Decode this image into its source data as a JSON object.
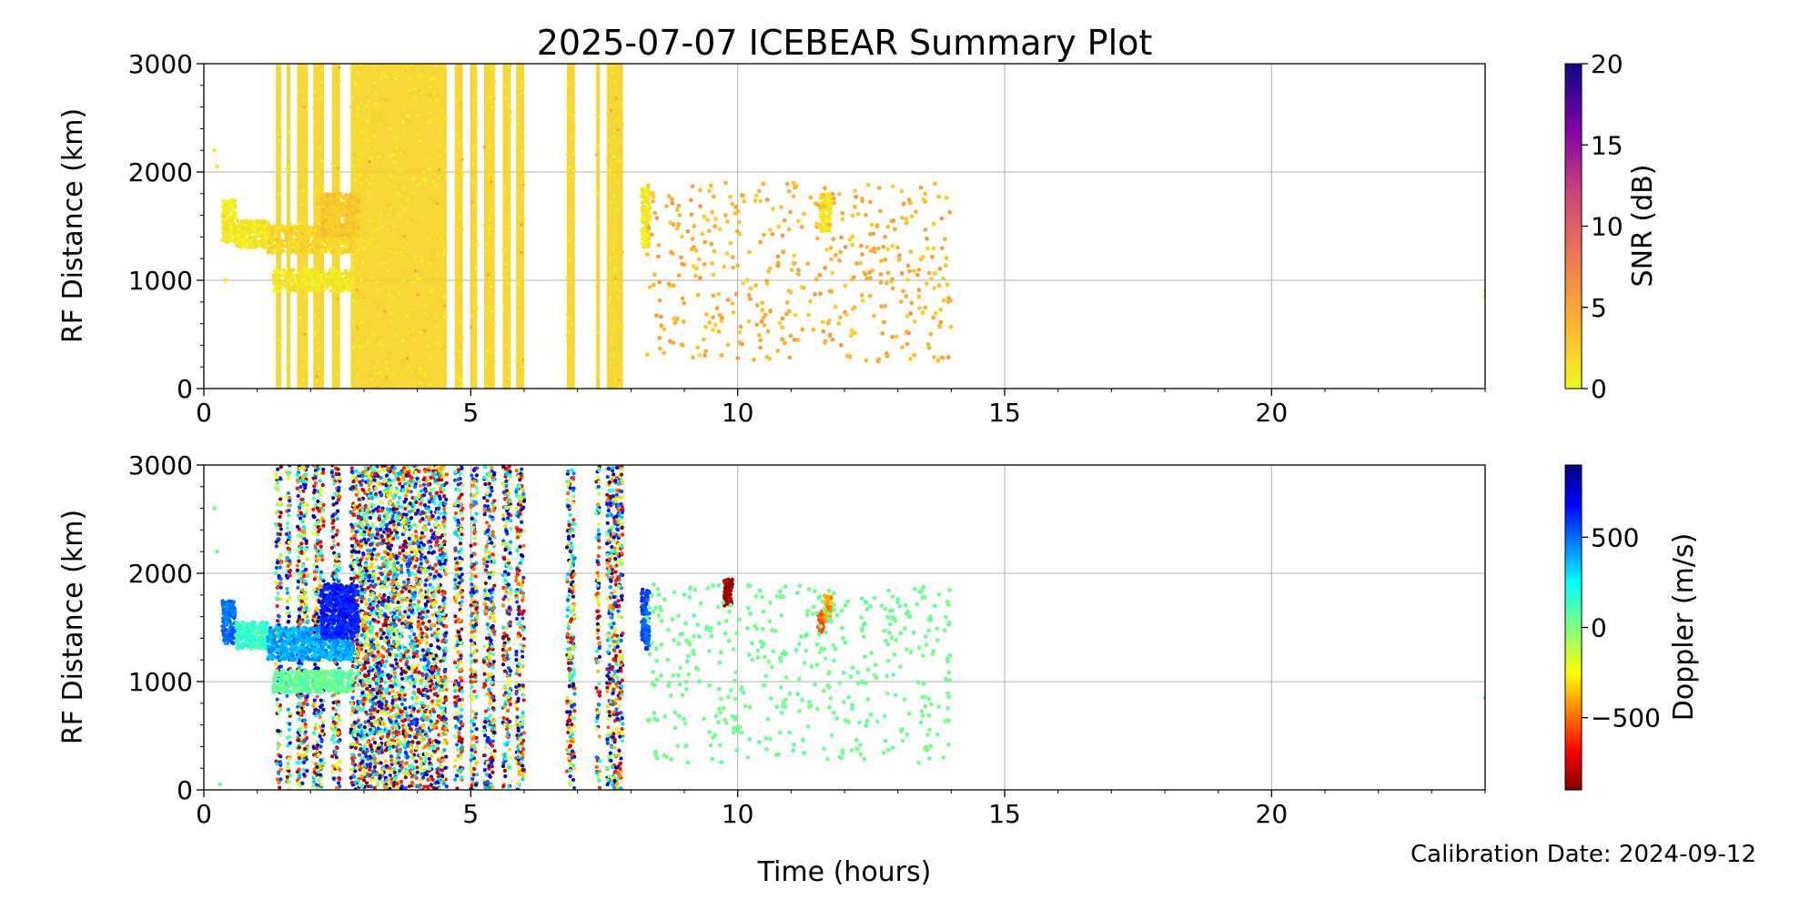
{
  "title": "2025-07-07 ICEBEAR Summary Plot",
  "footer": "Calibration Date: 2024-09-12",
  "chart_data": [
    {
      "type": "scatter",
      "name": "snr-panel",
      "xlabel": "",
      "ylabel": "RF Distance (km)",
      "xlim": [
        0,
        24
      ],
      "ylim": [
        0,
        3000
      ],
      "xticks": [
        0,
        5,
        10,
        15,
        20
      ],
      "yticks": [
        0,
        1000,
        2000,
        3000
      ],
      "grid": true,
      "colorbar": {
        "label": "SNR (dB)",
        "range": [
          0,
          20
        ],
        "ticks": [
          0,
          5,
          10,
          15,
          20
        ],
        "colormap": "plasma_r"
      },
      "dense_bands": [
        [
          1.35,
          1.45
        ],
        [
          1.55,
          1.62
        ],
        [
          1.75,
          1.95
        ],
        [
          2.05,
          2.25
        ],
        [
          2.4,
          2.55
        ],
        [
          2.75,
          4.55
        ],
        [
          4.7,
          4.85
        ],
        [
          5.0,
          5.12
        ],
        [
          5.25,
          5.45
        ],
        [
          5.6,
          5.75
        ],
        [
          5.85,
          6.0
        ],
        [
          6.8,
          6.95
        ],
        [
          7.35,
          7.42
        ],
        [
          7.55,
          7.85
        ]
      ],
      "clusters": [
        {
          "x": [
            0.35,
            0.6
          ],
          "y": [
            1350,
            1750
          ],
          "snr": 1
        },
        {
          "x": [
            0.6,
            1.2
          ],
          "y": [
            1300,
            1550
          ],
          "snr": 1
        },
        {
          "x": [
            1.2,
            2.8
          ],
          "y": [
            1250,
            1500
          ],
          "snr": 2
        },
        {
          "x": [
            2.2,
            2.9
          ],
          "y": [
            1400,
            1800
          ],
          "snr": 3
        },
        {
          "x": [
            1.3,
            2.8
          ],
          "y": [
            900,
            1100
          ],
          "snr": 1
        },
        {
          "x": [
            8.2,
            8.35
          ],
          "y": [
            1300,
            1850
          ],
          "snr": 1
        },
        {
          "x": [
            11.55,
            11.75
          ],
          "y": [
            1450,
            1800
          ],
          "snr": 1
        }
      ],
      "scatter_region": {
        "x": [
          8.3,
          14.0
        ],
        "y": [
          250,
          1900
        ],
        "count": 450,
        "snr": [
          2,
          6
        ]
      },
      "isolated_points": [
        {
          "x": 0.2,
          "y": 2200
        },
        {
          "x": 0.25,
          "y": 2050
        },
        {
          "x": 0.4,
          "y": 1000
        },
        {
          "x": 24.0,
          "y": 900
        },
        {
          "x": 24.0,
          "y": 850
        }
      ]
    },
    {
      "type": "scatter",
      "name": "doppler-panel",
      "xlabel": "Time (hours)",
      "ylabel": "RF Distance (km)",
      "xlim": [
        0,
        24
      ],
      "ylim": [
        0,
        3000
      ],
      "xticks": [
        0,
        5,
        10,
        15,
        20
      ],
      "yticks": [
        0,
        1000,
        2000,
        3000
      ],
      "grid": true,
      "colorbar": {
        "label": "Doppler (m/s)",
        "range": [
          -900,
          900
        ],
        "ticks": [
          -500,
          0,
          500
        ],
        "colormap": "jet_r"
      },
      "dense_bands": [
        [
          1.35,
          1.45
        ],
        [
          1.55,
          1.62
        ],
        [
          1.75,
          1.95
        ],
        [
          2.05,
          2.25
        ],
        [
          2.4,
          2.55
        ],
        [
          2.75,
          4.55
        ],
        [
          4.7,
          4.85
        ],
        [
          5.0,
          5.12
        ],
        [
          5.25,
          5.45
        ],
        [
          5.6,
          5.75
        ],
        [
          5.85,
          6.0
        ],
        [
          6.8,
          6.95
        ],
        [
          7.35,
          7.42
        ],
        [
          7.55,
          7.85
        ]
      ],
      "clusters": [
        {
          "x": [
            0.35,
            0.6
          ],
          "y": [
            1350,
            1750
          ],
          "doppler": 500
        },
        {
          "x": [
            0.6,
            1.2
          ],
          "y": [
            1300,
            1550
          ],
          "doppler": 150
        },
        {
          "x": [
            1.2,
            2.8
          ],
          "y": [
            1200,
            1500
          ],
          "doppler": 400
        },
        {
          "x": [
            2.2,
            2.9
          ],
          "y": [
            1400,
            1900
          ],
          "doppler": 650
        },
        {
          "x": [
            1.3,
            2.8
          ],
          "y": [
            900,
            1100
          ],
          "doppler": 50
        },
        {
          "x": [
            8.2,
            8.35
          ],
          "y": [
            1300,
            1850
          ],
          "doppler": 550
        },
        {
          "x": [
            11.5,
            11.62
          ],
          "y": [
            1450,
            1650
          ],
          "doppler": -550
        },
        {
          "x": [
            11.62,
            11.75
          ],
          "y": [
            1550,
            1800
          ],
          "doppler": -400
        },
        {
          "x": [
            9.75,
            9.9
          ],
          "y": [
            1700,
            1950
          ],
          "doppler": -850
        }
      ],
      "scatter_region": {
        "x": [
          8.3,
          14.0
        ],
        "y": [
          250,
          1900
        ],
        "count": 450,
        "doppler": [
          0,
          60
        ]
      },
      "isolated_points": [
        {
          "x": 0.2,
          "y": 2600
        },
        {
          "x": 0.25,
          "y": 2200
        },
        {
          "x": 0.3,
          "y": 50
        },
        {
          "x": 24.0,
          "y": 850
        }
      ]
    }
  ]
}
